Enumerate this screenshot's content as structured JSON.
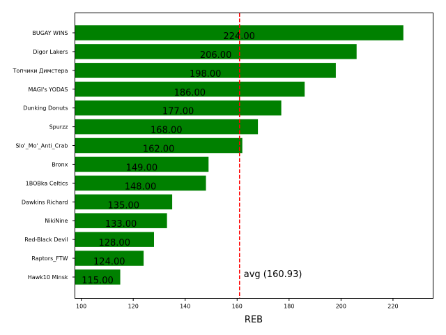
{
  "chart_data": {
    "type": "bar",
    "orientation": "horizontal",
    "title": "",
    "xlabel": "REB",
    "ylabel": "",
    "xlim": [
      97.55,
      235.45
    ],
    "xticks": [
      100,
      120,
      140,
      160,
      180,
      200,
      220
    ],
    "grid": false,
    "bar_color": "#008000",
    "categories": [
      "BUGAY WINS",
      "Digor Lakers",
      "Топчики Димстера",
      "MAGI's YODAS",
      "Dunking Donuts",
      "Spurzz",
      "Slo'_Mo'_Anti_Crab",
      "Bronx",
      "1BOBka Celtics",
      "Dawkins Richard",
      "NikiNine",
      "Red-Black Devil",
      "Raptors_FTW",
      "Hawk10 Minsk"
    ],
    "values": [
      224,
      206,
      198,
      186,
      177,
      168,
      162,
      149,
      148,
      135,
      133,
      128,
      124,
      115
    ],
    "value_labels": [
      "224.00",
      "206.00",
      "198.00",
      "186.00",
      "177.00",
      "168.00",
      "162.00",
      "149.00",
      "148.00",
      "135.00",
      "133.00",
      "128.00",
      "124.00",
      "115.00"
    ],
    "average": {
      "value": 160.93,
      "label": "avg (160.93)",
      "color": "#ff0000",
      "style": "dashed"
    }
  }
}
